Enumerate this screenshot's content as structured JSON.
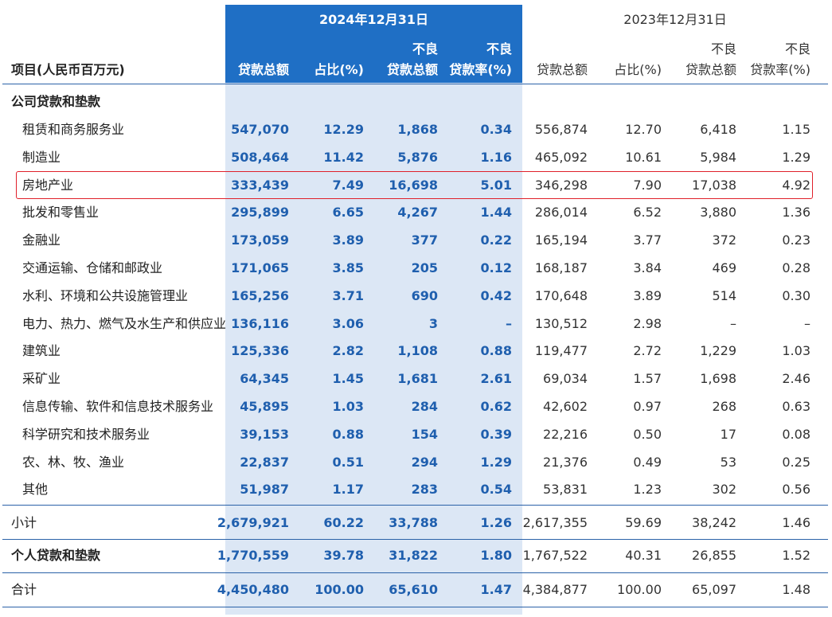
{
  "header": {
    "item_label": "项目(人民币百万元)",
    "year_2024": "2024年12月31日",
    "year_2023": "2023年12月31日",
    "col_loans": "贷款总额",
    "col_share": "占比(%)",
    "col_npl_top": "不良",
    "col_npl_bottom": "贷款总额",
    "col_rate_top": "不良",
    "col_rate_bottom": "贷款率(%)"
  },
  "section_corporate": "公司贷款和垫款",
  "rows": [
    {
      "label": "租赁和商务服务业",
      "v": [
        "547,070",
        "12.29",
        "1,868",
        "0.34",
        "556,874",
        "12.70",
        "6,418",
        "1.15"
      ]
    },
    {
      "label": "制造业",
      "v": [
        "508,464",
        "11.42",
        "5,876",
        "1.16",
        "465,092",
        "10.61",
        "5,984",
        "1.29"
      ]
    },
    {
      "label": "房地产业",
      "v": [
        "333,439",
        "7.49",
        "16,698",
        "5.01",
        "346,298",
        "7.90",
        "17,038",
        "4.92"
      ]
    },
    {
      "label": "批发和零售业",
      "v": [
        "295,899",
        "6.65",
        "4,267",
        "1.44",
        "286,014",
        "6.52",
        "3,880",
        "1.36"
      ]
    },
    {
      "label": "金融业",
      "v": [
        "173,059",
        "3.89",
        "377",
        "0.22",
        "165,194",
        "3.77",
        "372",
        "0.23"
      ]
    },
    {
      "label": "交通运输、仓储和邮政业",
      "v": [
        "171,065",
        "3.85",
        "205",
        "0.12",
        "168,187",
        "3.84",
        "469",
        "0.28"
      ]
    },
    {
      "label": "水利、环境和公共设施管理业",
      "v": [
        "165,256",
        "3.71",
        "690",
        "0.42",
        "170,648",
        "3.89",
        "514",
        "0.30"
      ]
    },
    {
      "label": "电力、热力、燃气及水生产和供应业",
      "v": [
        "136,116",
        "3.06",
        "3",
        "–",
        "130,512",
        "2.98",
        "–",
        "–"
      ]
    },
    {
      "label": "建筑业",
      "v": [
        "125,336",
        "2.82",
        "1,108",
        "0.88",
        "119,477",
        "2.72",
        "1,229",
        "1.03"
      ]
    },
    {
      "label": "采矿业",
      "v": [
        "64,345",
        "1.45",
        "1,681",
        "2.61",
        "69,034",
        "1.57",
        "1,698",
        "2.46"
      ]
    },
    {
      "label": "信息传输、软件和信息技术服务业",
      "v": [
        "45,895",
        "1.03",
        "284",
        "0.62",
        "42,602",
        "0.97",
        "268",
        "0.63"
      ]
    },
    {
      "label": "科学研究和技术服务业",
      "v": [
        "39,153",
        "0.88",
        "154",
        "0.39",
        "22,216",
        "0.50",
        "17",
        "0.08"
      ]
    },
    {
      "label": "农、林、牧、渔业",
      "v": [
        "22,837",
        "0.51",
        "294",
        "1.29",
        "21,376",
        "0.49",
        "53",
        "0.25"
      ]
    },
    {
      "label": "其他",
      "v": [
        "51,987",
        "1.17",
        "283",
        "0.54",
        "53,831",
        "1.23",
        "302",
        "0.56"
      ]
    }
  ],
  "subtotal": {
    "label": "小计",
    "v": [
      "2,679,921",
      "60.22",
      "33,788",
      "1.26",
      "2,617,355",
      "59.69",
      "38,242",
      "1.46"
    ]
  },
  "personal": {
    "label": "个人贷款和垫款",
    "v": [
      "1,770,559",
      "39.78",
      "31,822",
      "1.80",
      "1,767,522",
      "40.31",
      "26,855",
      "1.52"
    ]
  },
  "total": {
    "label": "合计",
    "v": [
      "4,450,480",
      "100.00",
      "65,610",
      "1.47",
      "4,384,877",
      "100.00",
      "65,097",
      "1.48"
    ]
  },
  "colors": {
    "accent": "#1f6fc5",
    "shade": "#dce7f5",
    "highlight": "#e0202a"
  }
}
